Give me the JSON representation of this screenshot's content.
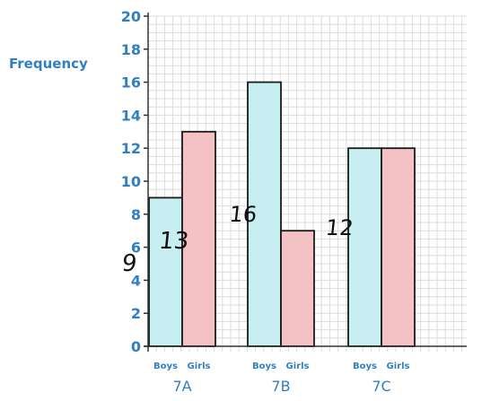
{
  "chart_data": {
    "type": "bar",
    "title": "",
    "xlabel": "",
    "ylabel": "Frequency",
    "ylim": [
      0,
      20
    ],
    "yticks": [
      "0",
      "2",
      "4",
      "6",
      "8",
      "10",
      "12",
      "14",
      "16",
      "18",
      "20"
    ],
    "grid": true,
    "categories": [
      "7A",
      "7B",
      "7C"
    ],
    "series": [
      {
        "name": "Boys",
        "values": [
          9,
          16,
          12
        ],
        "color": "#c7eff1"
      },
      {
        "name": "Girls",
        "values": [
          13,
          7,
          12
        ],
        "color": "#f4c2c4"
      }
    ],
    "annotations": [
      "9",
      "13",
      "16",
      "12"
    ],
    "colors": {
      "axis_text": "#2f7fc4",
      "grid": "#dcdcdc",
      "bar_outline": "#1a1a1a"
    }
  }
}
